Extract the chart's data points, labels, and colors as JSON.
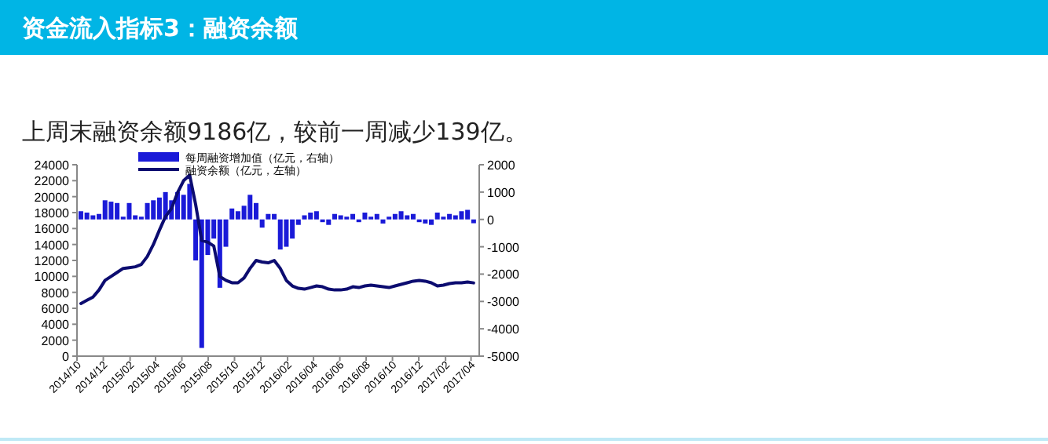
{
  "chart_data": {
    "type": "bar",
    "title": "资金流入指标3：融资余额",
    "subtitle": "上周末融资余额9186亿，较前一周减少139亿。",
    "x": [
      "2014-10-10",
      "2014-10-24",
      "2014-11-07",
      "2014-11-21",
      "2014-12-05",
      "2014-12-19",
      "2015-01-02",
      "2015-01-16",
      "2015-01-30",
      "2015-02-13",
      "2015-02-27",
      "2015-03-13",
      "2015-03-27",
      "2015-04-10",
      "2015-04-24",
      "2015-05-08",
      "2015-05-22",
      "2015-06-05",
      "2015-06-19",
      "2015-07-03",
      "2015-07-17",
      "2015-07-31",
      "2015-08-14",
      "2015-08-28",
      "2015-09-11",
      "2015-09-25",
      "2015-10-09",
      "2015-10-23",
      "2015-11-06",
      "2015-11-20",
      "2015-12-04",
      "2015-12-18",
      "2016-01-01",
      "2016-01-15",
      "2016-01-29",
      "2016-02-12",
      "2016-02-26",
      "2016-03-11",
      "2016-03-25",
      "2016-04-08",
      "2016-04-22",
      "2016-05-06",
      "2016-05-20",
      "2016-06-03",
      "2016-06-17",
      "2016-07-01",
      "2016-07-15",
      "2016-07-29",
      "2016-08-12",
      "2016-08-26",
      "2016-09-09",
      "2016-09-23",
      "2016-10-07",
      "2016-10-21",
      "2016-11-04",
      "2016-11-18",
      "2016-12-02",
      "2016-12-16",
      "2016-12-30",
      "2017-01-13",
      "2017-01-27",
      "2017-02-10",
      "2017-02-24",
      "2017-03-10",
      "2017-03-24",
      "2017-04-07"
    ],
    "series": [
      {
        "name": "每周融资增加值（亿元，右轴）",
        "axis": "y2",
        "color": "#1a1ad8",
        "values": [
          300,
          250,
          150,
          200,
          700,
          650,
          600,
          100,
          600,
          150,
          100,
          600,
          700,
          800,
          1000,
          700,
          1000,
          900,
          1300,
          -1500,
          -4700,
          -1300,
          -700,
          -2500,
          -1000,
          400,
          300,
          500,
          900,
          600,
          -300,
          200,
          200,
          -1100,
          -1000,
          -700,
          -200,
          150,
          250,
          300,
          -100,
          -200,
          200,
          150,
          100,
          200,
          -100,
          250,
          100,
          200,
          -150,
          100,
          200,
          300,
          150,
          200,
          -100,
          -150,
          -200,
          250,
          100,
          200,
          150,
          300,
          350,
          -139
        ]
      },
      {
        "name": "融资余额（亿元，左轴）",
        "type": "line",
        "axis": "y",
        "color": "#0c0c70",
        "values": [
          6600,
          7000,
          7400,
          8300,
          9500,
          10000,
          10500,
          11000,
          11100,
          11200,
          11500,
          12500,
          14000,
          15800,
          17500,
          18500,
          20500,
          22000,
          22700,
          19000,
          14500,
          14300,
          13800,
          10000,
          9500,
          9200,
          9200,
          9800,
          11000,
          12000,
          11800,
          11700,
          12000,
          11000,
          9500,
          8800,
          8500,
          8400,
          8600,
          8800,
          8700,
          8400,
          8300,
          8300,
          8400,
          8700,
          8600,
          8800,
          8900,
          8800,
          8700,
          8600,
          8800,
          9000,
          9200,
          9400,
          9500,
          9400,
          9200,
          8800,
          8900,
          9100,
          9200,
          9200,
          9300,
          9186
        ]
      }
    ],
    "xlim": [
      "2014-10-01",
      "2017-04-20"
    ],
    "xticks": [
      {
        "value": "2014-10-01",
        "label": "2014/10"
      },
      {
        "value": "2014-12-01",
        "label": "2014/12"
      },
      {
        "value": "2015-02-01",
        "label": "2015/02"
      },
      {
        "value": "2015-04-01",
        "label": "2015/04"
      },
      {
        "value": "2015-06-01",
        "label": "2015/06"
      },
      {
        "value": "2015-08-01",
        "label": "2015/08"
      },
      {
        "value": "2015-10-01",
        "label": "2015/10"
      },
      {
        "value": "2015-12-01",
        "label": "2015/12"
      },
      {
        "value": "2016-02-01",
        "label": "2016/02"
      },
      {
        "value": "2016-04-01",
        "label": "2016/04"
      },
      {
        "value": "2016-06-01",
        "label": "2016/06"
      },
      {
        "value": "2016-08-01",
        "label": "2016/08"
      },
      {
        "value": "2016-10-01",
        "label": "2016/10"
      },
      {
        "value": "2016-12-01",
        "label": "2016/12"
      },
      {
        "value": "2017-02-01",
        "label": "2017/02"
      },
      {
        "value": "2017-04-01",
        "label": "2017/04"
      }
    ],
    "ylim": [
      0,
      24000
    ],
    "yticks": [
      0,
      2000,
      4000,
      6000,
      8000,
      10000,
      12000,
      14000,
      16000,
      18000,
      20000,
      22000,
      24000
    ],
    "y2lim": [
      -5000,
      2000
    ],
    "y2ticks": [
      -5000,
      -4000,
      -3000,
      -2000,
      -1000,
      0,
      1000,
      2000
    ],
    "legend": "top",
    "grid": false
  }
}
